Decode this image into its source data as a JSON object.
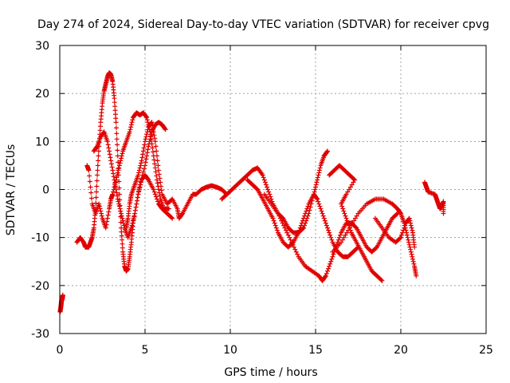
{
  "chart_data": {
    "type": "scatter",
    "title": "Day 274 of 2024, Sidereal Day-to-day VTEC variation (SDTVAR) for receiver cpvg",
    "xlabel": "GPS time / hours",
    "ylabel": "SDTVAR / TECUs",
    "xlim": [
      0,
      25
    ],
    "ylim": [
      -30,
      30
    ],
    "xticks": [
      0,
      5,
      10,
      15,
      20,
      25
    ],
    "yticks": [
      -30,
      -20,
      -10,
      0,
      10,
      20,
      30
    ],
    "grid": true,
    "marker": "plus",
    "marker_color": "#e00000",
    "series": [
      {
        "name": "arc-early",
        "points": [
          [
            0.02,
            -25.5
          ],
          [
            0.05,
            -24.8
          ],
          [
            0.08,
            -24.0
          ],
          [
            0.1,
            -23.2
          ],
          [
            0.15,
            -22.8
          ],
          [
            0.18,
            -22.0
          ]
        ]
      },
      {
        "name": "arc-rise-peak",
        "points": [
          [
            1.0,
            -11
          ],
          [
            1.2,
            -10
          ],
          [
            1.4,
            -11
          ],
          [
            1.5,
            -12
          ],
          [
            1.7,
            -12
          ],
          [
            1.8,
            -11
          ],
          [
            1.9,
            -10
          ],
          [
            2.0,
            -8
          ],
          [
            2.1,
            -4
          ],
          [
            2.2,
            3
          ],
          [
            2.3,
            9
          ],
          [
            2.4,
            14
          ],
          [
            2.5,
            18
          ],
          [
            2.6,
            20.5
          ],
          [
            2.7,
            22
          ],
          [
            2.8,
            23.5
          ],
          [
            2.9,
            24.3
          ],
          [
            3.0,
            24
          ],
          [
            3.1,
            22.5
          ],
          [
            3.2,
            19
          ],
          [
            3.3,
            14
          ],
          [
            3.4,
            7
          ],
          [
            3.5,
            -1
          ],
          [
            3.6,
            -8
          ],
          [
            3.7,
            -13
          ],
          [
            3.8,
            -16
          ],
          [
            3.9,
            -17
          ],
          [
            4.0,
            -16.5
          ],
          [
            4.1,
            -14
          ],
          [
            4.2,
            -11
          ],
          [
            4.3,
            -7
          ],
          [
            4.5,
            -3
          ],
          [
            4.7,
            1
          ],
          [
            5.0,
            5
          ],
          [
            5.2,
            9
          ],
          [
            5.4,
            12
          ],
          [
            5.6,
            13.5
          ],
          [
            5.8,
            14
          ],
          [
            6.0,
            13.5
          ],
          [
            6.2,
            12.5
          ]
        ]
      },
      {
        "name": "arc-mid-a",
        "points": [
          [
            2.0,
            8
          ],
          [
            2.2,
            9
          ],
          [
            2.4,
            11
          ],
          [
            2.6,
            12
          ],
          [
            2.8,
            10
          ],
          [
            3.0,
            6
          ],
          [
            3.2,
            2
          ],
          [
            3.4,
            -2
          ],
          [
            3.6,
            -5
          ],
          [
            3.8,
            -8
          ],
          [
            4.0,
            -10
          ],
          [
            4.2,
            -8
          ],
          [
            4.4,
            -5
          ],
          [
            4.6,
            -1
          ],
          [
            4.8,
            2
          ],
          [
            5.0,
            3
          ],
          [
            5.2,
            2
          ],
          [
            5.5,
            0
          ],
          [
            5.8,
            -3
          ],
          [
            6.0,
            -4
          ],
          [
            6.3,
            -5
          ],
          [
            6.6,
            -6
          ]
        ]
      },
      {
        "name": "arc-mid-b",
        "points": [
          [
            1.6,
            5
          ],
          [
            1.7,
            4
          ],
          [
            1.9,
            -3
          ],
          [
            2.1,
            -5
          ],
          [
            2.3,
            -3
          ],
          [
            2.5,
            -6
          ],
          [
            2.7,
            -8
          ],
          [
            2.9,
            -4
          ],
          [
            3.0,
            -2
          ],
          [
            3.1,
            -1
          ],
          [
            3.3,
            2
          ],
          [
            3.5,
            5
          ],
          [
            3.7,
            8
          ],
          [
            3.9,
            10
          ],
          [
            4.1,
            12
          ],
          [
            4.3,
            15
          ],
          [
            4.5,
            16
          ],
          [
            4.7,
            15.5
          ],
          [
            4.9,
            16
          ],
          [
            5.1,
            15
          ],
          [
            5.3,
            12
          ],
          [
            5.5,
            7
          ],
          [
            5.7,
            2
          ],
          [
            5.9,
            -2
          ],
          [
            6.1,
            -4
          ],
          [
            6.4,
            -4
          ]
        ]
      },
      {
        "name": "arc-mid-c",
        "points": [
          [
            3.9,
            -8
          ],
          [
            4.0,
            -6
          ],
          [
            4.1,
            -3
          ],
          [
            4.2,
            -1
          ],
          [
            4.4,
            1
          ],
          [
            4.6,
            3
          ],
          [
            4.8,
            6
          ],
          [
            5.0,
            10
          ],
          [
            5.2,
            13
          ],
          [
            5.4,
            14
          ],
          [
            5.6,
            10
          ],
          [
            5.8,
            4
          ],
          [
            6.0,
            -1
          ],
          [
            6.3,
            -3
          ],
          [
            6.6,
            -2
          ],
          [
            6.9,
            -4
          ],
          [
            7.0,
            -6
          ],
          [
            7.2,
            -5
          ],
          [
            7.5,
            -3
          ],
          [
            7.8,
            -1
          ],
          [
            8.0,
            -1
          ],
          [
            8.3,
            0
          ],
          [
            8.6,
            0.5
          ],
          [
            8.9,
            0.8
          ],
          [
            9.2,
            0.5
          ],
          [
            9.5,
            0
          ],
          [
            9.8,
            -1
          ]
        ]
      },
      {
        "name": "arc-late-1",
        "points": [
          [
            9.5,
            -2
          ],
          [
            9.8,
            -1
          ],
          [
            10.1,
            0
          ],
          [
            10.4,
            1
          ],
          [
            10.7,
            2
          ],
          [
            11.0,
            3
          ],
          [
            11.3,
            4
          ],
          [
            11.6,
            4.5
          ],
          [
            11.9,
            3
          ],
          [
            12.2,
            0
          ],
          [
            12.5,
            -3
          ],
          [
            12.8,
            -5
          ],
          [
            13.1,
            -6
          ],
          [
            13.4,
            -8
          ],
          [
            13.7,
            -9
          ],
          [
            14.0,
            -9
          ],
          [
            14.3,
            -8
          ],
          [
            14.6,
            -5
          ],
          [
            14.9,
            -1
          ],
          [
            15.1,
            2
          ],
          [
            15.3,
            5
          ],
          [
            15.5,
            7
          ],
          [
            15.7,
            8
          ]
        ]
      },
      {
        "name": "arc-late-2",
        "points": [
          [
            11.0,
            2
          ],
          [
            11.3,
            1
          ],
          [
            11.6,
            0
          ],
          [
            11.9,
            -2
          ],
          [
            12.2,
            -4
          ],
          [
            12.5,
            -6
          ],
          [
            12.8,
            -9
          ],
          [
            13.1,
            -11
          ],
          [
            13.4,
            -12
          ],
          [
            13.7,
            -11
          ],
          [
            14.0,
            -9
          ],
          [
            14.3,
            -6
          ],
          [
            14.6,
            -3
          ],
          [
            14.9,
            -1
          ],
          [
            15.1,
            -2
          ],
          [
            15.4,
            -5
          ],
          [
            15.7,
            -8
          ],
          [
            16.0,
            -11
          ],
          [
            16.3,
            -13
          ],
          [
            16.6,
            -14
          ],
          [
            16.9,
            -14
          ],
          [
            17.2,
            -13
          ],
          [
            17.5,
            -12
          ]
        ]
      },
      {
        "name": "arc-late-3",
        "points": [
          [
            12.0,
            -1
          ],
          [
            12.4,
            -3
          ],
          [
            12.8,
            -5
          ],
          [
            13.2,
            -8
          ],
          [
            13.6,
            -11
          ],
          [
            14.0,
            -14
          ],
          [
            14.4,
            -16
          ],
          [
            14.8,
            -17
          ],
          [
            15.2,
            -18
          ],
          [
            15.4,
            -19
          ],
          [
            15.6,
            -18
          ],
          [
            15.9,
            -15
          ],
          [
            16.2,
            -12
          ],
          [
            16.5,
            -9
          ],
          [
            16.8,
            -7
          ],
          [
            17.1,
            -7
          ],
          [
            17.4,
            -8
          ],
          [
            17.7,
            -10
          ],
          [
            18.0,
            -12
          ],
          [
            18.3,
            -13
          ],
          [
            18.6,
            -12
          ],
          [
            18.9,
            -10
          ],
          [
            19.2,
            -8
          ],
          [
            19.5,
            -6
          ],
          [
            19.8,
            -5
          ]
        ]
      },
      {
        "name": "arc-late-4",
        "points": [
          [
            15.8,
            3
          ],
          [
            16.1,
            4
          ],
          [
            16.4,
            5
          ],
          [
            16.7,
            4
          ],
          [
            17.0,
            3
          ],
          [
            17.3,
            2
          ],
          [
            16.8,
            -1
          ],
          [
            16.5,
            -3
          ],
          [
            16.8,
            -6
          ],
          [
            17.1,
            -9
          ],
          [
            17.4,
            -11
          ],
          [
            17.7,
            -13
          ],
          [
            18.0,
            -15
          ],
          [
            18.3,
            -17
          ],
          [
            18.6,
            -18
          ],
          [
            18.9,
            -19
          ]
        ]
      },
      {
        "name": "arc-late-5",
        "points": [
          [
            16.0,
            -13
          ],
          [
            16.5,
            -11
          ],
          [
            17.0,
            -8
          ],
          [
            17.5,
            -5
          ],
          [
            18.0,
            -3
          ],
          [
            18.5,
            -2
          ],
          [
            19.0,
            -2
          ],
          [
            19.5,
            -3
          ],
          [
            19.8,
            -4
          ],
          [
            20.0,
            -5
          ],
          [
            20.2,
            -7
          ],
          [
            20.4,
            -10
          ],
          [
            20.6,
            -13
          ],
          [
            20.8,
            -16
          ],
          [
            20.9,
            -18
          ]
        ]
      },
      {
        "name": "arc-late-6",
        "points": [
          [
            18.5,
            -6
          ],
          [
            18.9,
            -8
          ],
          [
            19.3,
            -10
          ],
          [
            19.7,
            -11
          ],
          [
            20.0,
            -10
          ],
          [
            20.3,
            -7
          ],
          [
            20.5,
            -6
          ],
          [
            20.7,
            -9
          ],
          [
            20.8,
            -12
          ]
        ]
      },
      {
        "name": "arc-tail",
        "points": [
          [
            21.4,
            1.5
          ],
          [
            21.5,
            0.5
          ],
          [
            21.6,
            -0.5
          ],
          [
            22.0,
            -1
          ],
          [
            22.1,
            -2
          ],
          [
            22.2,
            -3
          ],
          [
            22.3,
            -4
          ],
          [
            22.4,
            -3.5
          ],
          [
            22.5,
            -2.5
          ],
          [
            22.5,
            -5
          ]
        ]
      }
    ]
  }
}
